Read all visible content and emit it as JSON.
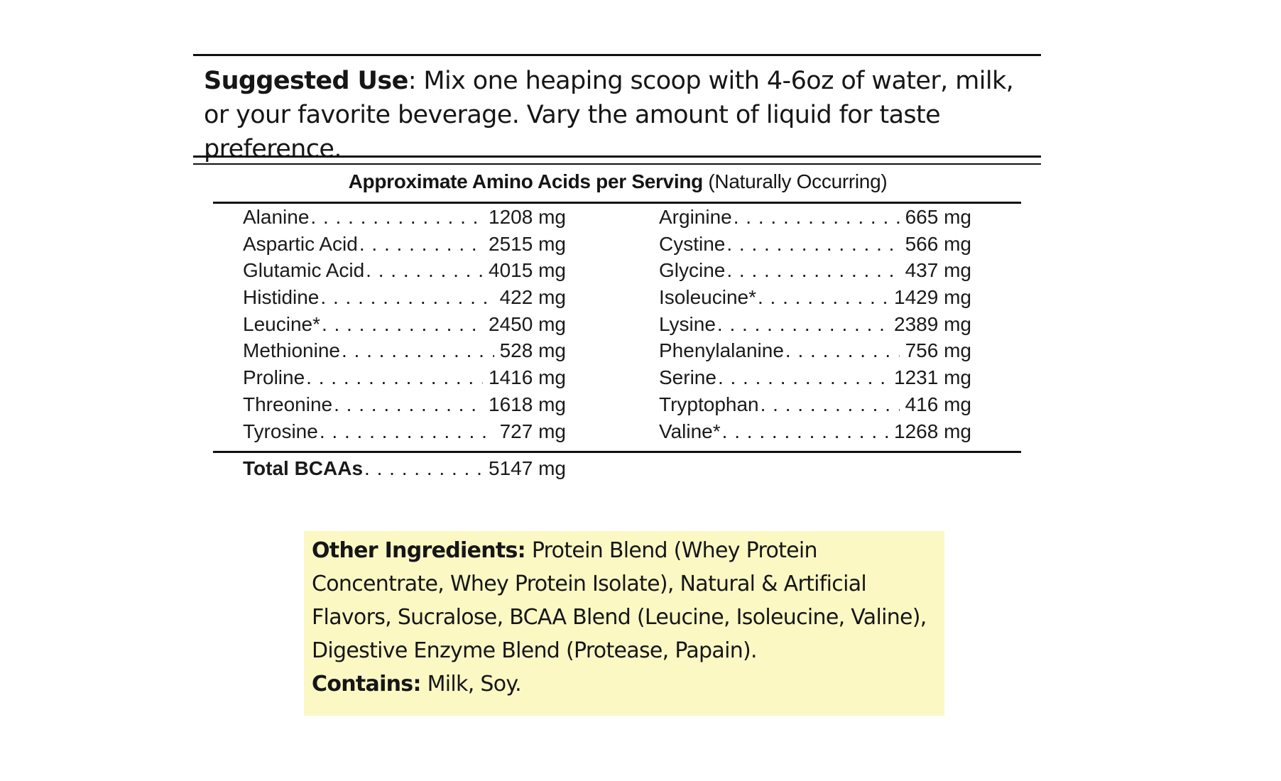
{
  "suggested_use": {
    "label": "Suggested Use",
    "text": ": Mix one heaping scoop with 4-6oz of water, milk, or your favorite beverage. Vary the amount of liquid for taste preference."
  },
  "amino_table": {
    "title_bold": "Approximate Amino Acids per Serving",
    "title_normal": " (Naturally Occurring)",
    "left_column": [
      {
        "name": "Alanine",
        "value": "1208 mg"
      },
      {
        "name": "Aspartic Acid",
        "value": "2515 mg"
      },
      {
        "name": "Glutamic Acid",
        "value": "4015 mg"
      },
      {
        "name": "Histidine",
        "value": "422 mg"
      },
      {
        "name": "Leucine*",
        "value": "2450 mg"
      },
      {
        "name": "Methionine",
        "value": "528 mg"
      },
      {
        "name": "Proline",
        "value": "1416 mg"
      },
      {
        "name": "Threonine",
        "value": "1618 mg"
      },
      {
        "name": "Tyrosine",
        "value": "727 mg"
      }
    ],
    "right_column": [
      {
        "name": "Arginine",
        "value": "665 mg"
      },
      {
        "name": "Cystine",
        "value": "566 mg"
      },
      {
        "name": "Glycine",
        "value": "437 mg"
      },
      {
        "name": "Isoleucine*",
        "value": "1429 mg"
      },
      {
        "name": "Lysine",
        "value": "2389 mg"
      },
      {
        "name": "Phenylalanine",
        "value": "756 mg"
      },
      {
        "name": "Serine",
        "value": "1231 mg"
      },
      {
        "name": "Tryptophan",
        "value": "416 mg"
      },
      {
        "name": "Valine*",
        "value": "1268 mg"
      }
    ],
    "total": {
      "name": "Total BCAAs",
      "value": "5147 mg"
    }
  },
  "other_ingredients": {
    "label": "Other Ingredients:",
    "text": " Protein Blend (Whey Protein Concentrate, Whey Protein Isolate), Natural & Artificial Flavors, Sucralose, BCAA Blend (Leucine, Isoleucine, Valine), Digestive Enzyme Blend (Protease, Papain).",
    "contains_label": "Contains:",
    "contains_text": " Milk, Soy."
  },
  "colors": {
    "ingredients_background": "#fbf8c4",
    "rule": "#111111"
  }
}
